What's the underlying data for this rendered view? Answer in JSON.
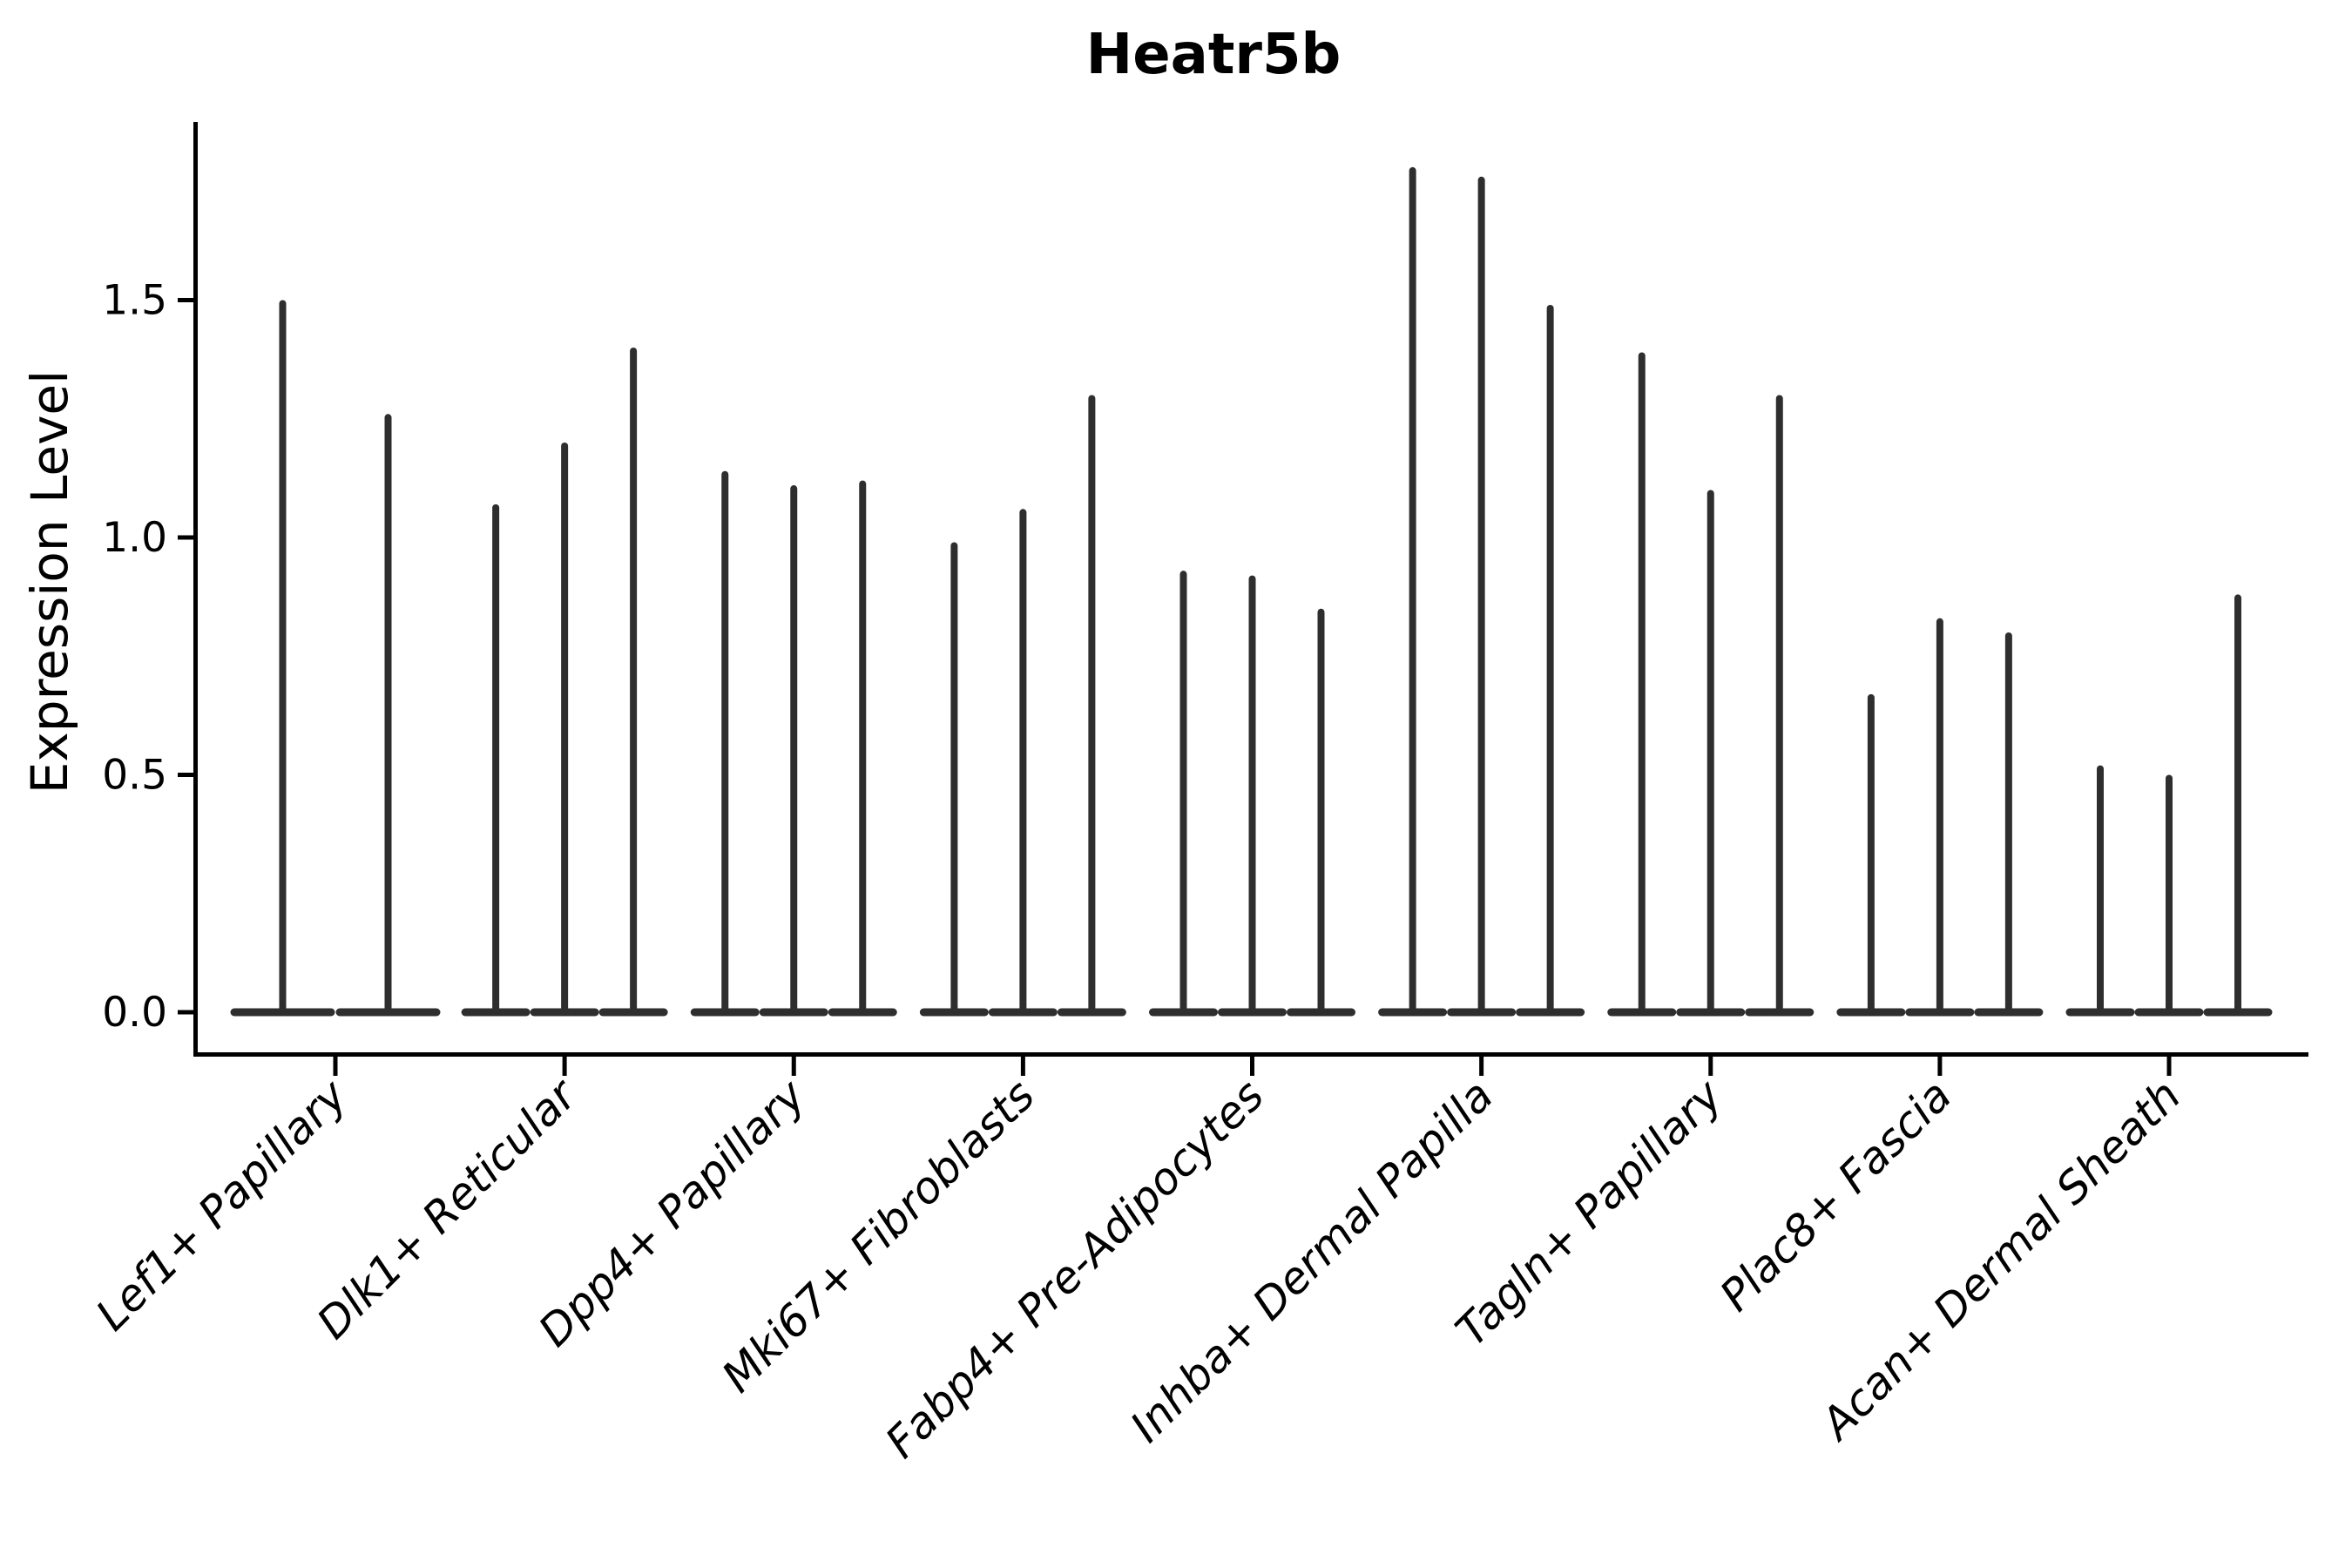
{
  "figure": {
    "title": "Heatr5b",
    "background": "#ffffff"
  },
  "chart_data": {
    "type": "violin",
    "title": "Heatr5b",
    "xlabel": "",
    "ylabel": "Expression Level",
    "ylim": [
      -0.085,
      1.875
    ],
    "yticks": [
      0.0,
      0.5,
      1.0,
      1.5
    ],
    "ytick_labels": [
      "0.0",
      "0.5",
      "1.0",
      "1.5"
    ],
    "grid": false,
    "legend_position": "none",
    "violin_color": "#2e2e2e",
    "axis_color": "#000000",
    "violin_style": "density concentrated at 0 (wide flat base) with thin spike rising to the max expression value",
    "categories": [
      "Lef1+ Papillary",
      "Dlk1+ Reticular",
      "Dpp4+ Papillary",
      "Mki67+ Fibroblasts",
      "Fabp4+ Pre-Adipocytes",
      "Inhba+ Dermal Papilla",
      "Tagln+ Papillary",
      "Plac8+ Fascia",
      "Acan+ Dermal Sheath"
    ],
    "series": [
      {
        "category": "Lef1+ Papillary",
        "violin_max_values": [
          1.5,
          1.26
        ]
      },
      {
        "category": "Dlk1+ Reticular",
        "violin_max_values": [
          1.07,
          1.2,
          1.4
        ]
      },
      {
        "category": "Dpp4+ Papillary",
        "violin_max_values": [
          1.14,
          1.11,
          1.12
        ]
      },
      {
        "category": "Mki67+ Fibroblasts",
        "violin_max_values": [
          0.99,
          1.06,
          1.3
        ]
      },
      {
        "category": "Fabp4+ Pre-Adipocytes",
        "violin_max_values": [
          0.93,
          0.92,
          0.85
        ]
      },
      {
        "category": "Inhba+ Dermal Papilla",
        "violin_max_values": [
          1.78,
          1.76,
          1.49
        ]
      },
      {
        "category": "Tagln+ Papillary",
        "violin_max_values": [
          1.39,
          1.1,
          1.3
        ]
      },
      {
        "category": "Plac8+ Fascia",
        "violin_max_values": [
          0.67,
          0.83,
          0.8
        ]
      },
      {
        "category": "Acan+ Dermal Sheath",
        "violin_max_values": [
          0.52,
          0.5,
          0.88
        ]
      }
    ]
  }
}
